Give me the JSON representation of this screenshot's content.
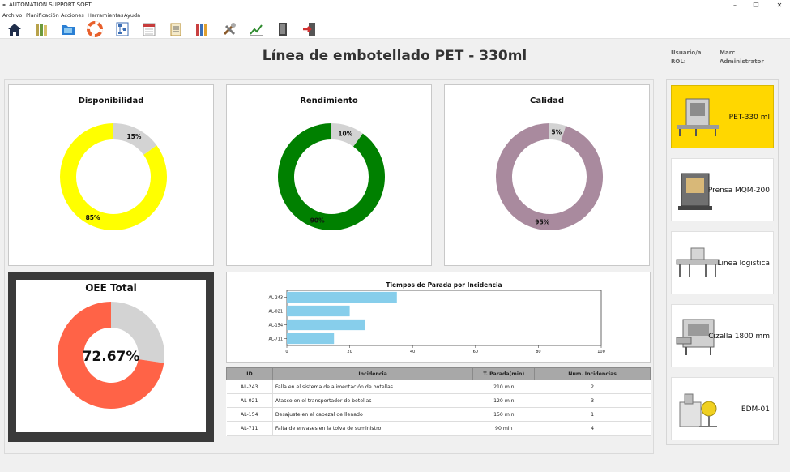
{
  "window": {
    "title": "AUTOMATION SUPPORT SOFT"
  },
  "menu": [
    "Archivo",
    "Planificación",
    "Acciones",
    "Herramientas",
    "Ayuda"
  ],
  "toolbar": [
    {
      "icon": "home-icon",
      "color": "#1f2d4a"
    },
    {
      "icon": "books-icon",
      "color": "#b8a24a"
    },
    {
      "icon": "folder-icon",
      "color": "#2a7fd4"
    },
    {
      "icon": "lifebuoy-icon",
      "color": "#e8602c"
    },
    {
      "icon": "network-icon",
      "color": "#3c6eb4"
    },
    {
      "icon": "calendar-icon",
      "color": "#c63b3b"
    },
    {
      "icon": "checklist-icon",
      "color": "#b8913a"
    },
    {
      "icon": "binders-icon",
      "color": "#c94040"
    },
    {
      "icon": "tools-icon",
      "color": "#8a5a2a"
    },
    {
      "icon": "trend-chart-icon",
      "color": "#2e8b2e"
    },
    {
      "icon": "door-icon",
      "color": "#444444"
    },
    {
      "icon": "exit-icon",
      "color": "#d03030"
    }
  ],
  "page_title": "Línea de embotellado PET - 330ml",
  "user": {
    "user_label": "Usuario/a",
    "user_value": "Marc",
    "role_label": "ROL:",
    "role_value": "Administrator"
  },
  "kpis": [
    {
      "title": "Disponibilidad",
      "value": 85,
      "rest": 15,
      "value_label": "85%",
      "rest_label": "15%",
      "color": "#ffff00",
      "rest_color": "#d3d3d3"
    },
    {
      "title": "Rendimiento",
      "value": 90,
      "rest": 10,
      "value_label": "90%",
      "rest_label": "10%",
      "color": "#008000",
      "rest_color": "#d3d3d3"
    },
    {
      "title": "Calidad",
      "value": 95,
      "rest": 5,
      "value_label": "95%",
      "rest_label": "5%",
      "color": "#a98a9e",
      "rest_color": "#d3d3d3"
    }
  ],
  "oee": {
    "title": "OEE Total",
    "value": 72.67,
    "value_label": "72.67%",
    "color": "#ff6347",
    "rest_color": "#d3d3d3",
    "frame_color": "#3a3a3a"
  },
  "chart_data": {
    "type": "bar",
    "orientation": "horizontal",
    "title": "Tiempos de Parada por Incidencia",
    "categories": [
      "AL-243",
      "AL-021",
      "AL-154",
      "AL-711"
    ],
    "values": [
      35,
      20,
      25,
      15
    ],
    "xlim": [
      0,
      100
    ],
    "xticks": [
      0,
      20,
      40,
      60,
      80,
      100
    ],
    "color": "#87ceeb",
    "xlabel": "",
    "ylabel": ""
  },
  "table": {
    "headers": [
      "ID",
      "Incidencia",
      "T. Parada(min)",
      "Num. Incidencias"
    ],
    "rows": [
      [
        "AL-243",
        "Falla en el sistema de alimentación de botellas",
        "210 min",
        "2"
      ],
      [
        "AL-021",
        "Atasco en el transportador de botellas",
        "120 min",
        "3"
      ],
      [
        "AL-154",
        "Desajuste en el cabezal de llenado",
        "150 min",
        "1"
      ],
      [
        "AL-711",
        "Falta de envases en la tolva de suministro",
        "90 min",
        "4"
      ]
    ]
  },
  "machines": [
    {
      "label": "PET-330 ml",
      "active": true,
      "accent": "#ffd700"
    },
    {
      "label": "Prensa MQM-200",
      "active": false
    },
    {
      "label": "Linea logistica",
      "active": false
    },
    {
      "label": "Cizalla 1800 mm",
      "active": false
    },
    {
      "label": "EDM-01",
      "active": false
    }
  ]
}
